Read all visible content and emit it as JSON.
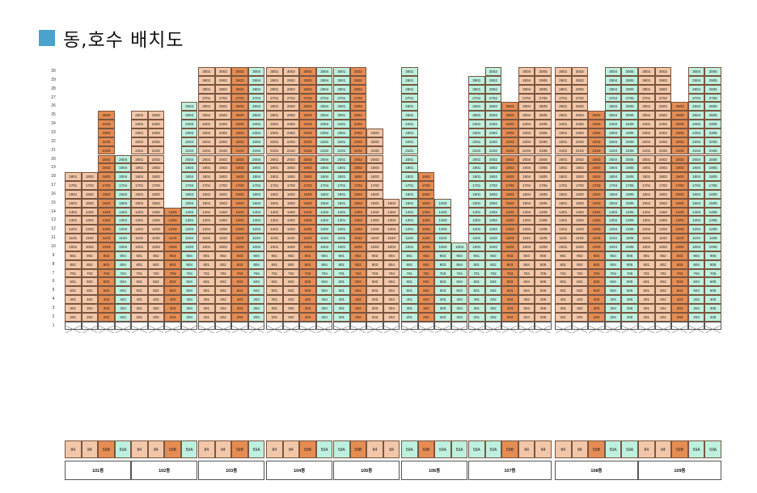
{
  "header": {
    "title": "동,호수 배치도",
    "accent_color": "#4aa3cd"
  },
  "floors": [
    "30",
    "29",
    "28",
    "27",
    "26",
    "25",
    "24",
    "23",
    "22",
    "21",
    "20",
    "19",
    "18",
    "17",
    "16",
    "15",
    "14",
    "13",
    "12",
    "11",
    "10",
    "9",
    "8",
    "7",
    "6",
    "5",
    "4",
    "3",
    "2",
    "1"
  ],
  "colors": {
    "type_84": "#f2c6a8",
    "type_59B": "#e58c52",
    "type_59A": "#bdf0de"
  },
  "buildings": [
    {
      "name": "101동",
      "units": [
        {
          "type": "84",
          "top": 18,
          "lines": [
            "01"
          ]
        },
        {
          "type": "84",
          "top": 18,
          "lines": [
            "02"
          ]
        },
        {
          "type": "59B",
          "top": 25,
          "lines": [
            "03"
          ]
        },
        {
          "type": "59A",
          "top": 20,
          "lines": [
            "04"
          ]
        }
      ],
      "types": [
        "84",
        "84",
        "59B",
        "59A"
      ]
    },
    {
      "name": "102동",
      "units": [
        {
          "type": "84",
          "top": 25
        },
        {
          "type": "84",
          "top": 25
        },
        {
          "type": "59B",
          "top": 14
        },
        {
          "type": "59A",
          "top": 26
        }
      ],
      "types": [
        "84",
        "84",
        "59B",
        "59A"
      ]
    },
    {
      "name": "103동",
      "units": [
        {
          "type": "84",
          "top": 30
        },
        {
          "type": "84",
          "top": 30
        },
        {
          "type": "59B",
          "top": 30
        },
        {
          "type": "59A",
          "top": 30
        }
      ],
      "types": [
        "84",
        "84",
        "59B",
        "59A"
      ]
    },
    {
      "name": "104동",
      "units": [
        {
          "type": "84",
          "top": 30
        },
        {
          "type": "84",
          "top": 30
        },
        {
          "type": "59B",
          "top": 30
        },
        {
          "type": "59A",
          "top": 30
        }
      ],
      "types": [
        "84",
        "84",
        "59B",
        "59A"
      ]
    },
    {
      "name": "105동",
      "units": [
        {
          "type": "59A",
          "top": 30
        },
        {
          "type": "59B",
          "top": 30
        },
        {
          "type": "84",
          "top": 23
        },
        {
          "type": "84",
          "top": 15
        }
      ],
      "types": [
        "59A",
        "59B",
        "84",
        "84"
      ]
    },
    {
      "name": "106동",
      "units": [
        {
          "type": "59A",
          "top": 30
        },
        {
          "type": "59B",
          "top": 18
        },
        {
          "type": "59A",
          "top": 15
        },
        {
          "type": "59A",
          "top": 10
        }
      ],
      "types": [
        "59A",
        "59B",
        "59A",
        "59A"
      ]
    },
    {
      "name": "107동",
      "units": [
        {
          "type": "59A",
          "top": 29
        },
        {
          "type": "59A",
          "top": 30
        },
        {
          "type": "59B",
          "top": 26
        },
        {
          "type": "84",
          "top": 30
        },
        {
          "type": "84",
          "top": 30
        }
      ],
      "types": [
        "59A",
        "59A",
        "59B",
        "84",
        "84"
      ]
    },
    {
      "name": "108동",
      "units": [
        {
          "type": "84",
          "top": 30
        },
        {
          "type": "84",
          "top": 30
        },
        {
          "type": "59B",
          "top": 25
        },
        {
          "type": "59A",
          "top": 30
        },
        {
          "type": "59A",
          "top": 30
        }
      ],
      "types": [
        "84",
        "84",
        "59B",
        "59A",
        "59A"
      ]
    },
    {
      "name": "109동",
      "units": [
        {
          "type": "84",
          "top": 30
        },
        {
          "type": "84",
          "top": 30
        },
        {
          "type": "59B",
          "top": 26
        },
        {
          "type": "59A",
          "top": 30
        },
        {
          "type": "59A",
          "top": 30
        }
      ],
      "types": [
        "84",
        "84",
        "59B",
        "59A",
        "59A"
      ]
    }
  ]
}
